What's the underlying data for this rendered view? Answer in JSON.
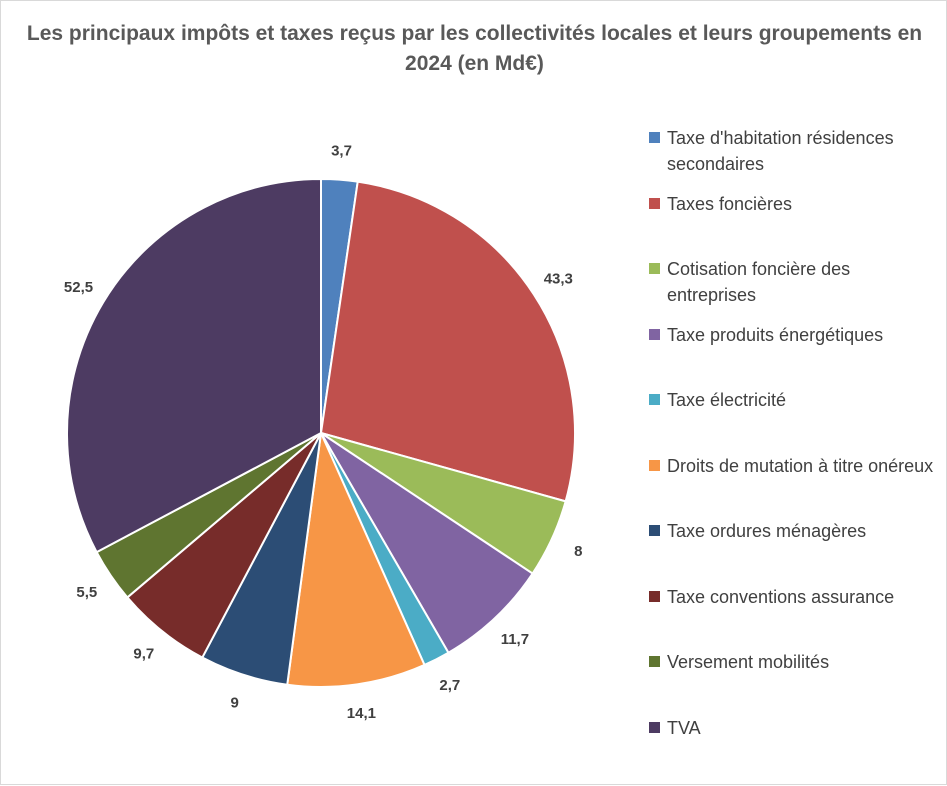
{
  "chart_data": {
    "type": "pie",
    "title": "Les principaux  impôts et taxes reçus par les collectivités locales et leurs groupements en 2024 (en Md€)",
    "legend_position": "right",
    "categories": [
      "Taxe d'habitation résidences secondaires",
      "Taxes foncières",
      "Cotisation foncière des entreprises",
      "Taxe produits énergétiques",
      "Taxe électricité",
      "Droits de mutation à titre onéreux",
      "Taxe ordures ménagères",
      "Taxe conventions assurance",
      "Versement mobilités",
      "TVA"
    ],
    "values": [
      3.7,
      43.3,
      8,
      11.7,
      2.7,
      14.1,
      9,
      9.7,
      5.5,
      52.5
    ],
    "data_labels": [
      "3,7",
      "43,3",
      "8",
      "11,7",
      "2,7",
      "14,1",
      "9",
      "9,7",
      "5,5",
      "52,5"
    ],
    "colors": [
      "#4F81BD",
      "#C0504D",
      "#9BBB59",
      "#8064A2",
      "#4BACC6",
      "#F79646",
      "#2C4D75",
      "#772C2A",
      "#5F7530",
      "#4D3B62"
    ]
  }
}
